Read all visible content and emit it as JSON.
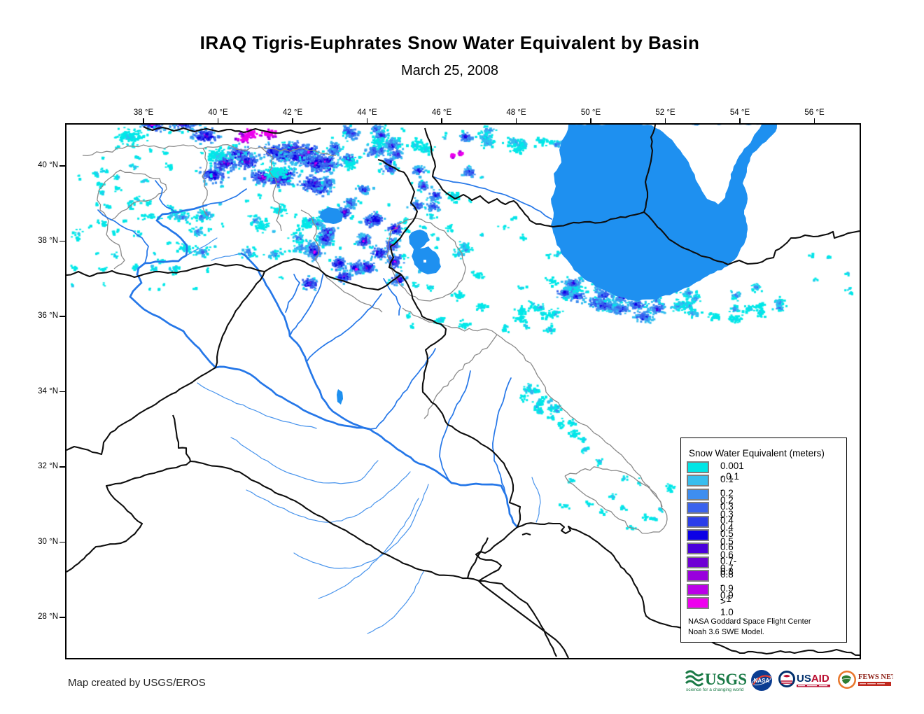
{
  "title": "IRAQ Tigris-Euphrates Snow Water Equivalent by Basin",
  "subtitle": "March 25, 2008",
  "map": {
    "top_axis_labels": [
      "38 °E",
      "40 °E",
      "42 °E",
      "44 °E",
      "46 °E",
      "48 °E",
      "50 °E",
      "52 °E",
      "54 °E",
      "56 °E"
    ],
    "left_axis_labels": [
      "40 °N",
      "38 °N",
      "36 °N",
      "34 °N",
      "32 °N",
      "30 °N",
      "28 °N"
    ],
    "colors": {
      "water": "#1E90F0",
      "river_major": "#2577E8",
      "river_minor": "#4793EC",
      "country_border": "#0d0d0d",
      "basin_boundary": "#8a8a8a",
      "frame": "#000000",
      "land": "#FFFFFF"
    }
  },
  "legend": {
    "title": "Snow Water Equivalent (meters)",
    "entries": [
      {
        "label": "0.001 - 0.1",
        "color": "#00E6E6"
      },
      {
        "label": "0.1 - 0.2",
        "color": "#38BEEE"
      },
      {
        "label": "0.2 - 0.3",
        "color": "#3E8EF0"
      },
      {
        "label": "0.3 - 0.4",
        "color": "#3A63EE"
      },
      {
        "label": "0.4 - 0.5",
        "color": "#2B3EEA"
      },
      {
        "label": "0.5 - 0.6",
        "color": "#0C00E6"
      },
      {
        "label": "0.6 - 0.7",
        "color": "#4A00DC"
      },
      {
        "label": "0.7- 0.8",
        "color": "#6E00D4"
      },
      {
        "label": "0.8 - 0.9",
        "color": "#9900DD"
      },
      {
        "label": "0.9 - 1",
        "color": "#BB00E8"
      },
      {
        "label": "> 1.0",
        "color": "#EE00EE"
      }
    ],
    "note_lines": [
      "NASA Goddard Space Flight Center",
      "Noah 3.6 SWE Model."
    ]
  },
  "footer": {
    "credit": "Map created by USGS/EROS",
    "logos": {
      "usgs": {
        "text": "USGS",
        "tagline": "science for a changing world",
        "color": "#1A7A46"
      },
      "nasa": {
        "text": "NASA",
        "color": "#0B3D91"
      },
      "usaid": {
        "text_us": "US",
        "text_aid": "AID",
        "blue": "#002F6C",
        "red": "#BA0C2F"
      },
      "fews": {
        "text": "FEWS NET",
        "orange": "#E8762B",
        "dark_red": "#8B1A10",
        "bar_red": "#C0281E"
      }
    }
  }
}
